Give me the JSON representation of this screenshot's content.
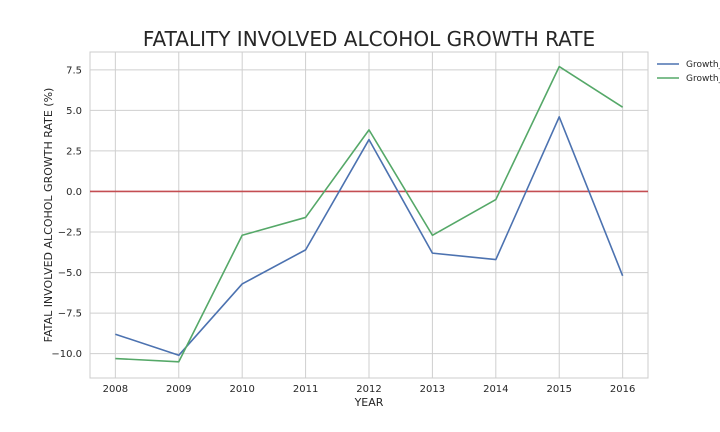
{
  "chart_data": {
    "type": "line",
    "title": "FATALITY INVOLVED ALCOHOL GROWTH RATE",
    "xlabel": "YEAR",
    "ylabel": "FATAL INVOLVED ALCOHOL GROWTH RATE (%)",
    "x": [
      2008,
      2009,
      2010,
      2011,
      2012,
      2013,
      2014,
      2015,
      2016
    ],
    "x_tick_labels": [
      "2008",
      "2009",
      "2010",
      "2011",
      "2012",
      "2013",
      "2014",
      "2015",
      "2016"
    ],
    "y_ticks": [
      -10.0,
      -7.5,
      -5.0,
      -2.5,
      0.0,
      2.5,
      5.0,
      7.5
    ],
    "y_tick_labels": [
      "−10.0",
      "−7.5",
      "−5.0",
      "−2.5",
      "0.0",
      "2.5",
      "5.0",
      "7.5"
    ],
    "xlim": [
      2007.6,
      2016.4
    ],
    "ylim": [
      -11.5,
      8.6
    ],
    "grid": true,
    "legend_position": "outside-right-top",
    "series": [
      {
        "name": "Growth_",
        "color": "#4c72b0",
        "values": [
          -8.8,
          -10.1,
          -5.7,
          -3.6,
          3.2,
          -3.8,
          -4.2,
          4.6,
          -5.2
        ]
      },
      {
        "name": "Growth_",
        "color": "#55a868",
        "values": [
          -10.3,
          -10.5,
          -2.7,
          -1.6,
          3.8,
          -2.7,
          -0.5,
          7.7,
          5.2
        ]
      }
    ],
    "reference_line": {
      "y": 0.0,
      "color": "#c44e52"
    }
  }
}
